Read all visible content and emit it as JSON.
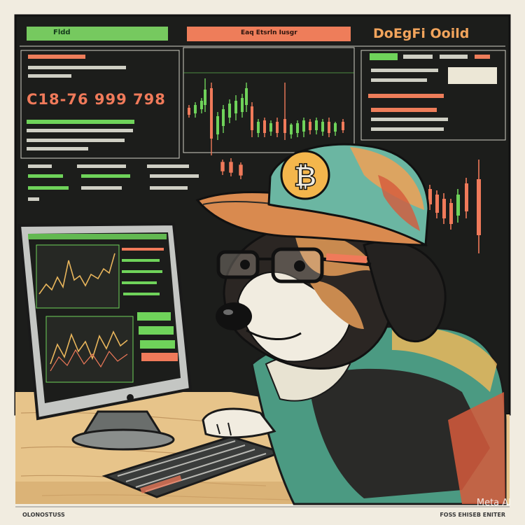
{
  "accent_colors": {
    "up": "#6fd35a",
    "down": "#f07a5a",
    "background": "#1c1d1b",
    "paper": "#f1ece0"
  },
  "top_bar": {
    "left_label": "Fldd",
    "mid_label": "Eaq Etsrln Iusgr"
  },
  "brand": "DoEgFi Ooild",
  "price_display": "C18-76 999 798",
  "cap_icon": "bitcoin-logo-icon",
  "watermark": "Meta AI",
  "footer": {
    "left": "OLONOSTUSS",
    "right": "FOSS EHISEB ENITER"
  }
}
